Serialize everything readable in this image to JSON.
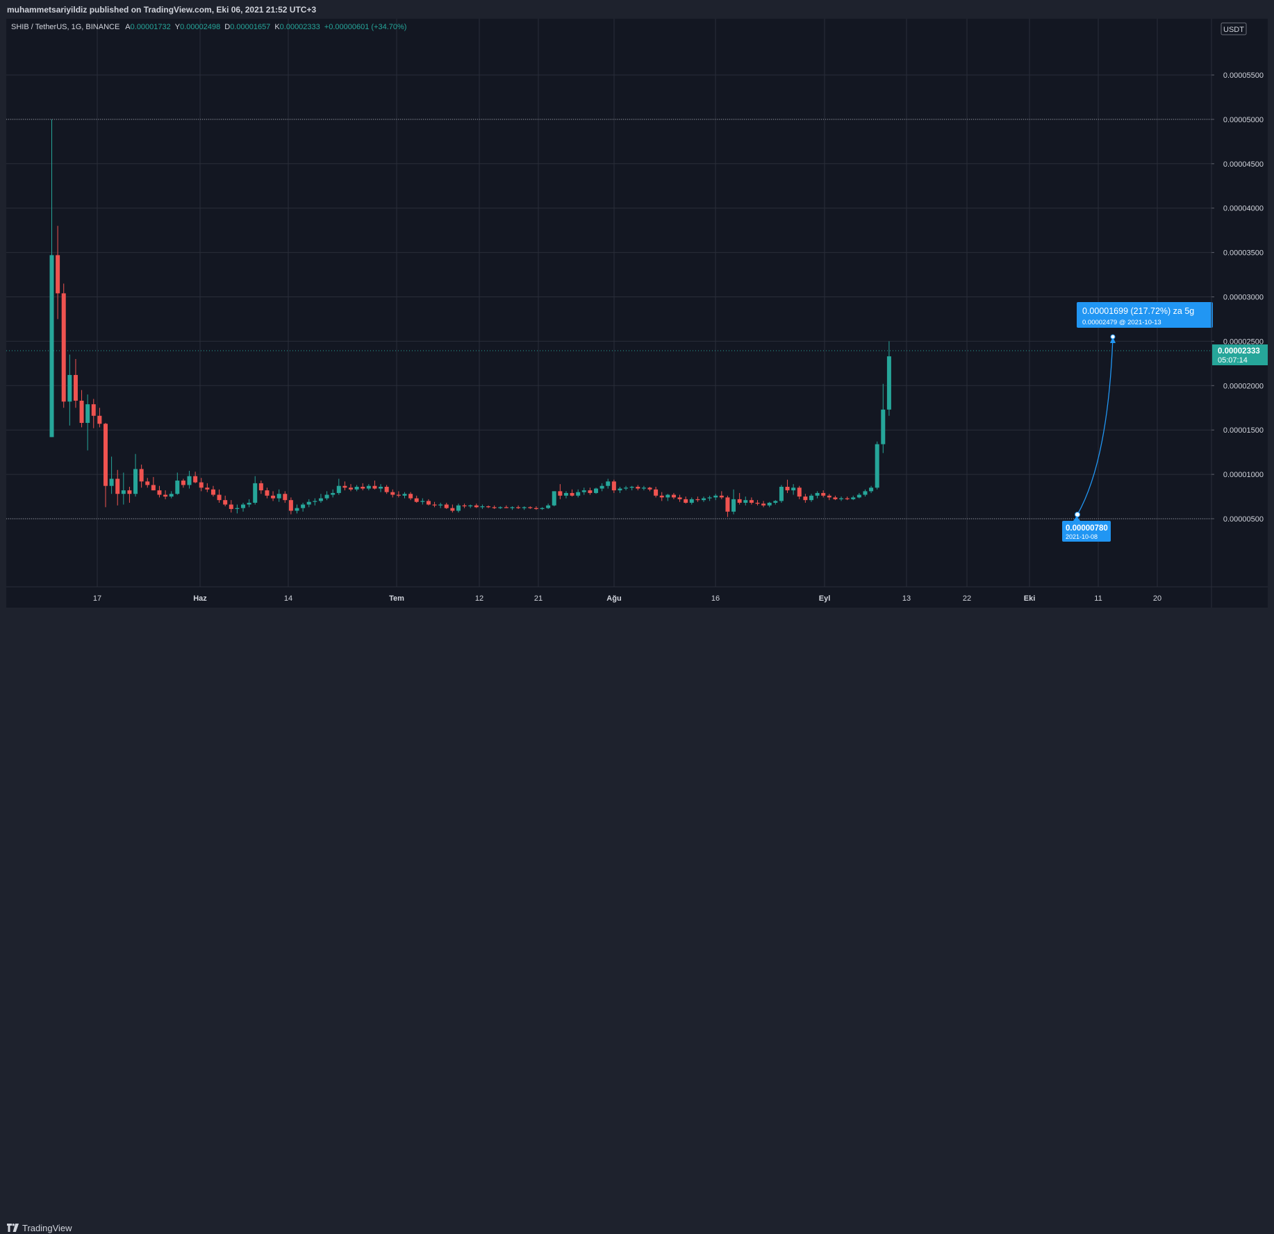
{
  "header": {
    "publisher": "muhammetsariyildiz published on TradingView.com, Eki 06, 2021 21:52 UTC+3"
  },
  "footer": {
    "brand": "TradingView"
  },
  "legend": {
    "symbol": "SHIB / TetherUS, 1G, BINANCE",
    "open_label": "A",
    "open": "0.00001732",
    "high_label": "Y",
    "high": "0.00002498",
    "low_label": "D",
    "low": "0.00001657",
    "close_label": "K",
    "close": "0.00002333",
    "change": "+0.00000601 (+34.70%)"
  },
  "currency_badge": "USDT",
  "last_price": {
    "value": "0.00002333",
    "countdown": "05:07:14"
  },
  "projection": {
    "start_value": "0.00000780",
    "start_date": "2021-10-08",
    "target_headline": "0.00001699 (217.72%) za 5g",
    "target_sub": "0.00002479 @ 2021-10-13"
  },
  "colors": {
    "background": "#131722",
    "up": "#26a69a",
    "down": "#ef5350",
    "accent": "#2196f3",
    "grid": "#2a2e39"
  },
  "chart_data": {
    "type": "candlestick",
    "title": "SHIB / TetherUS, 1G, BINANCE",
    "ylabel": "USDT",
    "ylim": [
      2.2e-06,
      5.52e-05
    ],
    "yticks": [
      "0.00005500",
      "0.00005000",
      "0.00004500",
      "0.00004000",
      "0.00003500",
      "0.00003000",
      "0.00002500",
      "0.00002000",
      "0.00001500",
      "0.00001000",
      "0.00000500"
    ],
    "x_ticks": [
      "17",
      "Haz",
      "14",
      "Tem",
      "12",
      "21",
      "Ağu",
      "16",
      "Eyl",
      "13",
      "22",
      "Eki",
      "11",
      "20"
    ],
    "horizontal_lines": [
      5e-05,
      5e-06
    ],
    "candles": [
      {
        "o": 1.42e-05,
        "h": 5e-05,
        "l": 1.42e-05,
        "c": 3.47e-05
      },
      {
        "o": 3.47e-05,
        "h": 3.8e-05,
        "l": 2.75e-05,
        "c": 3.04e-05
      },
      {
        "o": 3.04e-05,
        "h": 3.15e-05,
        "l": 1.75e-05,
        "c": 1.82e-05
      },
      {
        "o": 1.82e-05,
        "h": 2.35e-05,
        "l": 1.55e-05,
        "c": 2.12e-05
      },
      {
        "o": 2.12e-05,
        "h": 2.3e-05,
        "l": 1.75e-05,
        "c": 1.83e-05
      },
      {
        "o": 1.83e-05,
        "h": 1.95e-05,
        "l": 1.53e-05,
        "c": 1.58e-05
      },
      {
        "o": 1.58e-05,
        "h": 1.9e-05,
        "l": 1.27e-05,
        "c": 1.79e-05
      },
      {
        "o": 1.79e-05,
        "h": 1.85e-05,
        "l": 1.52e-05,
        "c": 1.66e-05
      },
      {
        "o": 1.66e-05,
        "h": 1.75e-05,
        "l": 1.53e-05,
        "c": 1.57e-05
      },
      {
        "o": 1.57e-05,
        "h": 1.58e-05,
        "l": 6.3e-06,
        "c": 8.7e-06
      },
      {
        "o": 8.7e-06,
        "h": 1.2e-05,
        "l": 7.8e-06,
        "c": 9.5e-06
      },
      {
        "o": 9.5e-06,
        "h": 1.05e-05,
        "l": 6.5e-06,
        "c": 7.8e-06
      },
      {
        "o": 7.8e-06,
        "h": 1.02e-05,
        "l": 6.6e-06,
        "c": 8.2e-06
      },
      {
        "o": 8.2e-06,
        "h": 8.6e-06,
        "l": 6.8e-06,
        "c": 7.8e-06
      },
      {
        "o": 7.8e-06,
        "h": 1.23e-05,
        "l": 7.5e-06,
        "c": 1.06e-05
      },
      {
        "o": 1.06e-05,
        "h": 1.11e-05,
        "l": 8.5e-06,
        "c": 9.2e-06
      },
      {
        "o": 9.2e-06,
        "h": 9.6e-06,
        "l": 8.5e-06,
        "c": 8.8e-06
      },
      {
        "o": 8.8e-06,
        "h": 9.7e-06,
        "l": 8.2e-06,
        "c": 8.2e-06
      },
      {
        "o": 8.2e-06,
        "h": 8.7e-06,
        "l": 7.4e-06,
        "c": 7.7e-06
      },
      {
        "o": 7.7e-06,
        "h": 8.2e-06,
        "l": 7.2e-06,
        "c": 7.5e-06
      },
      {
        "o": 7.5e-06,
        "h": 8.1e-06,
        "l": 7.3e-06,
        "c": 7.8e-06
      },
      {
        "o": 7.8e-06,
        "h": 1.02e-05,
        "l": 7.7e-06,
        "c": 9.3e-06
      },
      {
        "o": 9.3e-06,
        "h": 9.5e-06,
        "l": 8.5e-06,
        "c": 8.8e-06
      },
      {
        "o": 8.8e-06,
        "h": 1.04e-05,
        "l": 8.4e-06,
        "c": 9.8e-06
      },
      {
        "o": 9.8e-06,
        "h": 1.03e-05,
        "l": 9e-06,
        "c": 9.1e-06
      },
      {
        "o": 9.1e-06,
        "h": 9.6e-06,
        "l": 8.1e-06,
        "c": 8.5e-06
      },
      {
        "o": 8.5e-06,
        "h": 9e-06,
        "l": 8e-06,
        "c": 8.3e-06
      },
      {
        "o": 8.3e-06,
        "h": 8.7e-06,
        "l": 7.5e-06,
        "c": 7.7e-06
      },
      {
        "o": 7.7e-06,
        "h": 8.3e-06,
        "l": 6.8e-06,
        "c": 7.1e-06
      },
      {
        "o": 7.1e-06,
        "h": 7.6e-06,
        "l": 6.4e-06,
        "c": 6.6e-06
      },
      {
        "o": 6.6e-06,
        "h": 7.1e-06,
        "l": 5.7e-06,
        "c": 6.1e-06
      },
      {
        "o": 6.1e-06,
        "h": 6.6e-06,
        "l": 5.6e-06,
        "c": 6.2e-06
      },
      {
        "o": 6.2e-06,
        "h": 6.8e-06,
        "l": 5.8e-06,
        "c": 6.6e-06
      },
      {
        "o": 6.6e-06,
        "h": 7.2e-06,
        "l": 6.3e-06,
        "c": 6.8e-06
      },
      {
        "o": 6.8e-06,
        "h": 9.8e-06,
        "l": 6.6e-06,
        "c": 9e-06
      },
      {
        "o": 9e-06,
        "h": 9.3e-06,
        "l": 7.8e-06,
        "c": 8.2e-06
      },
      {
        "o": 8.2e-06,
        "h": 8.5e-06,
        "l": 7.3e-06,
        "c": 7.6e-06
      },
      {
        "o": 7.6e-06,
        "h": 8.1e-06,
        "l": 7e-06,
        "c": 7.3e-06
      },
      {
        "o": 7.3e-06,
        "h": 8.3e-06,
        "l": 6.9e-06,
        "c": 7.8e-06
      },
      {
        "o": 7.8e-06,
        "h": 8.1e-06,
        "l": 6.8e-06,
        "c": 7.1e-06
      },
      {
        "o": 7.1e-06,
        "h": 7.4e-06,
        "l": 5.5e-06,
        "c": 5.9e-06
      },
      {
        "o": 5.9e-06,
        "h": 6.6e-06,
        "l": 5.6e-06,
        "c": 6.2e-06
      },
      {
        "o": 6.2e-06,
        "h": 6.8e-06,
        "l": 5.8e-06,
        "c": 6.6e-06
      },
      {
        "o": 6.6e-06,
        "h": 7.2e-06,
        "l": 6.3e-06,
        "c": 6.9e-06
      },
      {
        "o": 6.9e-06,
        "h": 7.3e-06,
        "l": 6.5e-06,
        "c": 7e-06
      },
      {
        "o": 7e-06,
        "h": 7.8e-06,
        "l": 6.8e-06,
        "c": 7.3e-06
      },
      {
        "o": 7.3e-06,
        "h": 8.1e-06,
        "l": 7.1e-06,
        "c": 7.7e-06
      },
      {
        "o": 7.7e-06,
        "h": 8.3e-06,
        "l": 7.4e-06,
        "c": 7.9e-06
      },
      {
        "o": 7.9e-06,
        "h": 9.5e-06,
        "l": 7.7e-06,
        "c": 8.7e-06
      },
      {
        "o": 8.7e-06,
        "h": 9.2e-06,
        "l": 8.2e-06,
        "c": 8.5e-06
      },
      {
        "o": 8.5e-06,
        "h": 8.9e-06,
        "l": 8.1e-06,
        "c": 8.3e-06
      },
      {
        "o": 8.3e-06,
        "h": 8.8e-06,
        "l": 8.1e-06,
        "c": 8.6e-06
      },
      {
        "o": 8.6e-06,
        "h": 9e-06,
        "l": 8.2e-06,
        "c": 8.4e-06
      },
      {
        "o": 8.4e-06,
        "h": 8.9e-06,
        "l": 8.2e-06,
        "c": 8.7e-06
      },
      {
        "o": 8.7e-06,
        "h": 9.3e-06,
        "l": 8.3e-06,
        "c": 8.4e-06
      },
      {
        "o": 8.4e-06,
        "h": 8.9e-06,
        "l": 8e-06,
        "c": 8.6e-06
      },
      {
        "o": 8.6e-06,
        "h": 8.8e-06,
        "l": 7.8e-06,
        "c": 8e-06
      },
      {
        "o": 8e-06,
        "h": 8.3e-06,
        "l": 7.4e-06,
        "c": 7.7e-06
      },
      {
        "o": 7.7e-06,
        "h": 8.1e-06,
        "l": 7.4e-06,
        "c": 7.6e-06
      },
      {
        "o": 7.6e-06,
        "h": 8e-06,
        "l": 7.3e-06,
        "c": 7.8e-06
      },
      {
        "o": 7.8e-06,
        "h": 8e-06,
        "l": 7.1e-06,
        "c": 7.3e-06
      },
      {
        "o": 7.3e-06,
        "h": 7.6e-06,
        "l": 6.8e-06,
        "c": 6.9e-06
      },
      {
        "o": 6.9e-06,
        "h": 7.3e-06,
        "l": 6.6e-06,
        "c": 7e-06
      },
      {
        "o": 7e-06,
        "h": 7.2e-06,
        "l": 6.5e-06,
        "c": 6.6e-06
      },
      {
        "o": 6.6e-06,
        "h": 6.9e-06,
        "l": 6.3e-06,
        "c": 6.5e-06
      },
      {
        "o": 6.5e-06,
        "h": 6.8e-06,
        "l": 6.2e-06,
        "c": 6.6e-06
      },
      {
        "o": 6.6e-06,
        "h": 6.8e-06,
        "l": 6.1e-06,
        "c": 6.2e-06
      },
      {
        "o": 6.2e-06,
        "h": 6.6e-06,
        "l": 5.7e-06,
        "c": 5.9e-06
      },
      {
        "o": 5.9e-06,
        "h": 6.7e-06,
        "l": 5.7e-06,
        "c": 6.5e-06
      },
      {
        "o": 6.5e-06,
        "h": 6.7e-06,
        "l": 6.2e-06,
        "c": 6.4e-06
      },
      {
        "o": 6.4e-06,
        "h": 6.6e-06,
        "l": 6.2e-06,
        "c": 6.5e-06
      },
      {
        "o": 6.5e-06,
        "h": 6.7e-06,
        "l": 6.2e-06,
        "c": 6.3e-06
      },
      {
        "o": 6.3e-06,
        "h": 6.6e-06,
        "l": 6.1e-06,
        "c": 6.4e-06
      },
      {
        "o": 6.4e-06,
        "h": 6.5e-06,
        "l": 6.2e-06,
        "c": 6.3e-06
      },
      {
        "o": 6.3e-06,
        "h": 6.5e-06,
        "l": 6.1e-06,
        "c": 6.2e-06
      },
      {
        "o": 6.2e-06,
        "h": 6.4e-06,
        "l": 6.1e-06,
        "c": 6.3e-06
      },
      {
        "o": 6.3e-06,
        "h": 6.5e-06,
        "l": 6.2e-06,
        "c": 6.2e-06
      },
      {
        "o": 6.2e-06,
        "h": 6.4e-06,
        "l": 6e-06,
        "c": 6.3e-06
      },
      {
        "o": 6.3e-06,
        "h": 6.5e-06,
        "l": 6.1e-06,
        "c": 6.2e-06
      },
      {
        "o": 6.2e-06,
        "h": 6.4e-06,
        "l": 6e-06,
        "c": 6.3e-06
      },
      {
        "o": 6.3e-06,
        "h": 6.4e-06,
        "l": 6.1e-06,
        "c": 6.2e-06
      },
      {
        "o": 6.2e-06,
        "h": 6.4e-06,
        "l": 6e-06,
        "c": 6.1e-06
      },
      {
        "o": 6.1e-06,
        "h": 6.3e-06,
        "l": 6e-06,
        "c": 6.2e-06
      },
      {
        "o": 6.2e-06,
        "h": 6.7e-06,
        "l": 6.1e-06,
        "c": 6.5e-06
      },
      {
        "o": 6.5e-06,
        "h": 8.1e-06,
        "l": 6.4e-06,
        "c": 8.1e-06
      },
      {
        "o": 8.1e-06,
        "h": 8.9e-06,
        "l": 7.2e-06,
        "c": 7.6e-06
      },
      {
        "o": 7.6e-06,
        "h": 8.1e-06,
        "l": 7.3e-06,
        "c": 7.9e-06
      },
      {
        "o": 7.9e-06,
        "h": 8.3e-06,
        "l": 7.5e-06,
        "c": 7.6e-06
      },
      {
        "o": 7.6e-06,
        "h": 8.3e-06,
        "l": 7.4e-06,
        "c": 8e-06
      },
      {
        "o": 8e-06,
        "h": 8.5e-06,
        "l": 7.7e-06,
        "c": 8.2e-06
      },
      {
        "o": 8.2e-06,
        "h": 8.5e-06,
        "l": 7.7e-06,
        "c": 7.9e-06
      },
      {
        "o": 7.9e-06,
        "h": 8.5e-06,
        "l": 7.8e-06,
        "c": 8.4e-06
      },
      {
        "o": 8.4e-06,
        "h": 9e-06,
        "l": 8.1e-06,
        "c": 8.7e-06
      },
      {
        "o": 8.7e-06,
        "h": 9.5e-06,
        "l": 8.4e-06,
        "c": 9.2e-06
      },
      {
        "o": 9.2e-06,
        "h": 9.4e-06,
        "l": 7.9e-06,
        "c": 8.2e-06
      },
      {
        "o": 8.2e-06,
        "h": 8.6e-06,
        "l": 7.9e-06,
        "c": 8.4e-06
      },
      {
        "o": 8.4e-06,
        "h": 8.7e-06,
        "l": 8.2e-06,
        "c": 8.5e-06
      },
      {
        "o": 8.5e-06,
        "h": 8.7e-06,
        "l": 8.2e-06,
        "c": 8.6e-06
      },
      {
        "o": 8.6e-06,
        "h": 8.8e-06,
        "l": 8.2e-06,
        "c": 8.4e-06
      },
      {
        "o": 8.4e-06,
        "h": 8.7e-06,
        "l": 8.2e-06,
        "c": 8.5e-06
      },
      {
        "o": 8.5e-06,
        "h": 8.6e-06,
        "l": 8.1e-06,
        "c": 8.3e-06
      },
      {
        "o": 8.3e-06,
        "h": 8.6e-06,
        "l": 7.4e-06,
        "c": 7.6e-06
      },
      {
        "o": 7.6e-06,
        "h": 8e-06,
        "l": 7e-06,
        "c": 7.4e-06
      },
      {
        "o": 7.4e-06,
        "h": 7.8e-06,
        "l": 7e-06,
        "c": 7.7e-06
      },
      {
        "o": 7.7e-06,
        "h": 7.9e-06,
        "l": 7.2e-06,
        "c": 7.4e-06
      },
      {
        "o": 7.4e-06,
        "h": 7.7e-06,
        "l": 6.9e-06,
        "c": 7.2e-06
      },
      {
        "o": 7.2e-06,
        "h": 7.5e-06,
        "l": 6.7e-06,
        "c": 6.8e-06
      },
      {
        "o": 6.8e-06,
        "h": 7.4e-06,
        "l": 6.6e-06,
        "c": 7.2e-06
      },
      {
        "o": 7.2e-06,
        "h": 7.5e-06,
        "l": 6.9e-06,
        "c": 7.1e-06
      },
      {
        "o": 7.1e-06,
        "h": 7.5e-06,
        "l": 6.9e-06,
        "c": 7.3e-06
      },
      {
        "o": 7.3e-06,
        "h": 7.6e-06,
        "l": 7e-06,
        "c": 7.4e-06
      },
      {
        "o": 7.4e-06,
        "h": 7.8e-06,
        "l": 7.1e-06,
        "c": 7.6e-06
      },
      {
        "o": 7.6e-06,
        "h": 8.1e-06,
        "l": 7.2e-06,
        "c": 7.4e-06
      },
      {
        "o": 7.4e-06,
        "h": 7.6e-06,
        "l": 5.2e-06,
        "c": 5.8e-06
      },
      {
        "o": 5.8e-06,
        "h": 8.3e-06,
        "l": 5.5e-06,
        "c": 7.2e-06
      },
      {
        "o": 7.2e-06,
        "h": 7.9e-06,
        "l": 6.6e-06,
        "c": 6.8e-06
      },
      {
        "o": 6.8e-06,
        "h": 7.5e-06,
        "l": 6.5e-06,
        "c": 7.1e-06
      },
      {
        "o": 7.1e-06,
        "h": 7.4e-06,
        "l": 6.6e-06,
        "c": 6.8e-06
      },
      {
        "o": 6.8e-06,
        "h": 7.1e-06,
        "l": 6.5e-06,
        "c": 6.7e-06
      },
      {
        "o": 6.7e-06,
        "h": 7e-06,
        "l": 6.3e-06,
        "c": 6.5e-06
      },
      {
        "o": 6.5e-06,
        "h": 6.9e-06,
        "l": 6.3e-06,
        "c": 6.8e-06
      },
      {
        "o": 6.8e-06,
        "h": 7.1e-06,
        "l": 6.6e-06,
        "c": 7e-06
      },
      {
        "o": 7e-06,
        "h": 8.8e-06,
        "l": 6.8e-06,
        "c": 8.6e-06
      },
      {
        "o": 8.6e-06,
        "h": 9.4e-06,
        "l": 7.9e-06,
        "c": 8.2e-06
      },
      {
        "o": 8.2e-06,
        "h": 8.9e-06,
        "l": 7.7e-06,
        "c": 8.5e-06
      },
      {
        "o": 8.5e-06,
        "h": 8.7e-06,
        "l": 7.2e-06,
        "c": 7.5e-06
      },
      {
        "o": 7.5e-06,
        "h": 7.8e-06,
        "l": 6.8e-06,
        "c": 7.1e-06
      },
      {
        "o": 7.1e-06,
        "h": 7.8e-06,
        "l": 6.9e-06,
        "c": 7.6e-06
      },
      {
        "o": 7.6e-06,
        "h": 8.1e-06,
        "l": 7.3e-06,
        "c": 7.9e-06
      },
      {
        "o": 7.9e-06,
        "h": 8.2e-06,
        "l": 7.4e-06,
        "c": 7.6e-06
      },
      {
        "o": 7.6e-06,
        "h": 7.8e-06,
        "l": 7.1e-06,
        "c": 7.4e-06
      },
      {
        "o": 7.4e-06,
        "h": 7.6e-06,
        "l": 7.1e-06,
        "c": 7.2e-06
      },
      {
        "o": 7.2e-06,
        "h": 7.5e-06,
        "l": 7e-06,
        "c": 7.3e-06
      },
      {
        "o": 7.3e-06,
        "h": 7.5e-06,
        "l": 7.1e-06,
        "c": 7.2e-06
      },
      {
        "o": 7.2e-06,
        "h": 7.6e-06,
        "l": 7.1e-06,
        "c": 7.4e-06
      },
      {
        "o": 7.4e-06,
        "h": 7.9e-06,
        "l": 7.3e-06,
        "c": 7.7e-06
      },
      {
        "o": 7.7e-06,
        "h": 8.3e-06,
        "l": 7.5e-06,
        "c": 8.1e-06
      },
      {
        "o": 8.1e-06,
        "h": 8.7e-06,
        "l": 7.9e-06,
        "c": 8.5e-06
      },
      {
        "o": 8.5e-06,
        "h": 1.37e-05,
        "l": 8.3e-06,
        "c": 1.34e-05
      },
      {
        "o": 1.34e-05,
        "h": 2.02e-05,
        "l": 1.24e-05,
        "c": 1.73e-05
      },
      {
        "o": 1.73e-05,
        "h": 2.5e-05,
        "l": 1.66e-05,
        "c": 2.33e-05
      }
    ]
  }
}
